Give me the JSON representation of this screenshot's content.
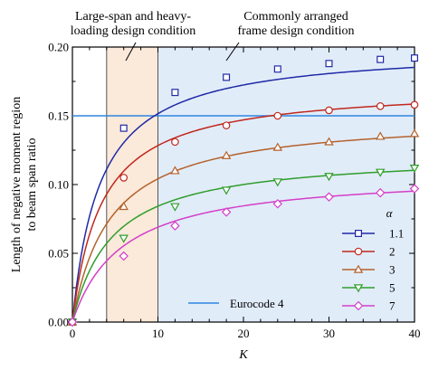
{
  "chart_data": {
    "type": "line",
    "xlabel": "K",
    "ylabel_lines": [
      "Length of negative moment region",
      "to beam span ratio"
    ],
    "xlim": [
      0,
      40
    ],
    "ylim": [
      0,
      0.2
    ],
    "x_ticks": [
      0,
      10,
      20,
      30,
      40
    ],
    "x_tick_labels": [
      "0",
      "10",
      "20",
      "30",
      "40"
    ],
    "y_ticks": [
      0,
      0.05,
      0.1,
      0.15,
      0.2
    ],
    "y_tick_labels": [
      "0.00",
      "0.05",
      "0.10",
      "0.15",
      "0.20"
    ],
    "x_minor_step": 2,
    "y_minor_step": 0.025,
    "regions": [
      {
        "name": "large-span",
        "x0": 4,
        "x1": 10,
        "color": "#fbe9da",
        "label_lines": [
          "Large-span and heavy-",
          "loading design condition"
        ],
        "leader_from_x": 13
      },
      {
        "name": "common-frame",
        "x0": 10,
        "x1": 40,
        "color": "#e1ecf9",
        "label_lines": [
          "Commonly arranged",
          "frame design condition"
        ],
        "leader_from_x": 18
      }
    ],
    "legend_title": "α",
    "series": [
      {
        "name": "1.1",
        "marker": "square",
        "color": "#1f2aa6",
        "plateau": 0.2,
        "k_half": 3.2,
        "x": [
          0,
          6,
          12,
          18,
          24,
          30,
          36,
          40
        ],
        "y": [
          0,
          0.141,
          0.167,
          0.178,
          0.184,
          0.188,
          0.191,
          0.192
        ]
      },
      {
        "name": "2",
        "marker": "circle",
        "color": "#c0281e",
        "plateau": 0.172,
        "k_half": 3.4,
        "x": [
          0,
          6,
          12,
          18,
          24,
          30,
          36,
          40
        ],
        "y": [
          0,
          0.105,
          0.131,
          0.143,
          0.15,
          0.154,
          0.157,
          0.158
        ]
      },
      {
        "name": "3",
        "marker": "triangle-up",
        "color": "#b4622c",
        "plateau": 0.15,
        "k_half": 4.4,
        "x": [
          0,
          6,
          12,
          18,
          24,
          30,
          36,
          40
        ],
        "y": [
          0,
          0.084,
          0.11,
          0.121,
          0.127,
          0.131,
          0.135,
          0.137
        ]
      },
      {
        "name": "5",
        "marker": "triangle-down",
        "color": "#2f9e2a",
        "plateau": 0.123,
        "k_half": 4.6,
        "x": [
          0,
          6,
          12,
          18,
          24,
          30,
          36,
          40
        ],
        "y": [
          0,
          0.061,
          0.084,
          0.096,
          0.102,
          0.106,
          0.109,
          0.112
        ]
      },
      {
        "name": "7",
        "marker": "diamond",
        "color": "#d43fc8",
        "plateau": 0.109,
        "k_half": 5.8,
        "x": [
          0,
          6,
          12,
          18,
          24,
          30,
          36,
          40
        ],
        "y": [
          0,
          0.048,
          0.07,
          0.08,
          0.086,
          0.091,
          0.094,
          0.097
        ]
      }
    ],
    "reference_line": {
      "name": "Eurocode 4",
      "y": 0.15,
      "color": "#2e86e0"
    }
  }
}
